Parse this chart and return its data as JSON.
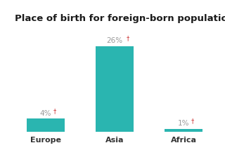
{
  "title": "Place of birth for foreign-born population",
  "categories": [
    "Europe",
    "Asia",
    "Africa"
  ],
  "values": [
    4,
    26,
    1
  ],
  "pct_labels": [
    "4%",
    "26%",
    "1%"
  ],
  "dagger": "†",
  "bar_color": "#2ab5b0",
  "bar_width": 0.55,
  "x_positions": [
    0,
    1,
    2
  ],
  "xlim": [
    -0.5,
    2.5
  ],
  "ylim": [
    0,
    30
  ],
  "background_color": "#ffffff",
  "title_fontsize": 9.5,
  "label_fontsize": 7.5,
  "category_fontsize": 8,
  "label_color": "#999999",
  "category_color": "#333333",
  "dagger_color": "#cc3333",
  "title_color": "#1a1a1a"
}
